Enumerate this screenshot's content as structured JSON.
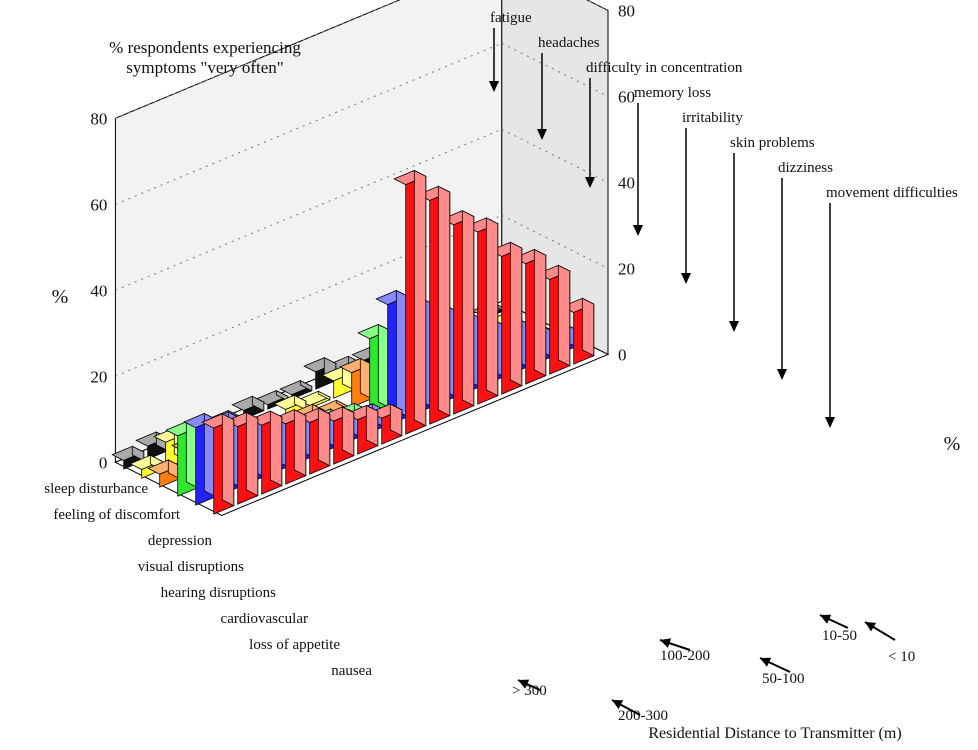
{
  "chart_data": {
    "type": "bar",
    "projection": "3d-grouped",
    "title_line1": "% respondents  experiencing",
    "title_line2": "symptoms  \"very often\"",
    "ylabel": "%",
    "xlabel": "Residential Distance to Transmitter (m)",
    "ylim": [
      0,
      80
    ],
    "y_ticks": [
      "0",
      "20",
      "40",
      "60",
      "80"
    ],
    "grid": true,
    "distance_bands": [
      "> 300",
      "200-300",
      "100-200",
      "50-100",
      "10-50",
      "< 10"
    ],
    "symptoms": [
      "sleep disturbance",
      "feeling of discomfort",
      "depression",
      "visual disruptions",
      "hearing disruptions",
      "cardiovascular",
      "loss of appetite",
      "nausea",
      "fatigue",
      "headaches",
      "difficulty in concentration",
      "memory loss",
      "irritability",
      "skin problems",
      "dizziness",
      "movement difficulties"
    ],
    "series": [
      {
        "name": "> 300",
        "color": "#111111",
        "color2": "#a9a9a9",
        "values": [
          2,
          3,
          1,
          1,
          1,
          2,
          1,
          1,
          4,
          2,
          2,
          1,
          1,
          1,
          0,
          0
        ]
      },
      {
        "name": "200-300",
        "color": "#ffff33",
        "color2": "#ffff99",
        "values": [
          2,
          6,
          3,
          4,
          2,
          0,
          2,
          0,
          4,
          3,
          2,
          1,
          1,
          1,
          0,
          0
        ]
      },
      {
        "name": "100-200",
        "color": "#ff7f0e",
        "color2": "#ffb070",
        "values": [
          3,
          6,
          4,
          3,
          2,
          0,
          2,
          0,
          8,
          6,
          3,
          2,
          1,
          1,
          0,
          0
        ]
      },
      {
        "name": "50-100",
        "color": "#2ee82e",
        "color2": "#88ff88",
        "values": [
          14,
          12,
          10,
          8,
          5,
          3,
          3,
          2,
          18,
          14,
          10,
          8,
          5,
          4,
          2,
          1
        ]
      },
      {
        "name": "10-50",
        "color": "#2222ff",
        "color2": "#8888ff",
        "values": [
          18,
          16,
          12,
          10,
          8,
          6,
          5,
          4,
          28,
          24,
          20,
          16,
          12,
          10,
          6,
          4
        ]
      },
      {
        "name": "< 10",
        "color": "#ff1111",
        "color2": "#ff8a8a",
        "values": [
          20,
          18,
          16,
          14,
          12,
          10,
          8,
          6,
          58,
          52,
          44,
          40,
          32,
          28,
          22,
          12
        ]
      }
    ]
  }
}
